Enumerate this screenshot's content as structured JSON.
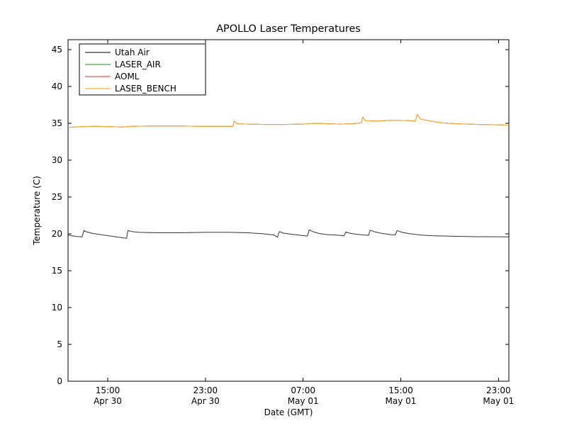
{
  "chart_data": {
    "type": "line",
    "title": "APOLLO Laser Temperatures",
    "xlabel": "Date (GMT)",
    "ylabel": "Temperature (C)",
    "ylim": [
      0,
      46.35
    ],
    "yticks": [
      0,
      5,
      10,
      15,
      20,
      25,
      30,
      35,
      40,
      45
    ],
    "xlim": [
      -0.25,
      35.85
    ],
    "xticks": [
      {
        "t": 3,
        "time": "15:00",
        "date": "Apr 30"
      },
      {
        "t": 11,
        "time": "23:00",
        "date": "Apr 30"
      },
      {
        "t": 19,
        "time": "07:00",
        "date": "May 01"
      },
      {
        "t": 27,
        "time": "15:00",
        "date": "May 01"
      },
      {
        "t": 35,
        "time": "23:00",
        "date": "May 01"
      }
    ],
    "legend_position": "upper left",
    "series": [
      {
        "name": "Utah Air",
        "color": "#333333",
        "points": [
          [
            -0.25,
            19.85
          ],
          [
            0.4,
            19.65
          ],
          [
            0.9,
            19.6
          ],
          [
            1.05,
            20.45
          ],
          [
            1.3,
            20.25
          ],
          [
            1.8,
            20.05
          ],
          [
            2.6,
            19.85
          ],
          [
            3.5,
            19.65
          ],
          [
            4.3,
            19.45
          ],
          [
            4.55,
            19.4
          ],
          [
            4.65,
            20.45
          ],
          [
            5.0,
            20.3
          ],
          [
            5.6,
            20.2
          ],
          [
            7.0,
            20.15
          ],
          [
            9.0,
            20.15
          ],
          [
            11.0,
            20.2
          ],
          [
            13.0,
            20.2
          ],
          [
            14.5,
            20.15
          ],
          [
            15.8,
            20.0
          ],
          [
            16.6,
            19.85
          ],
          [
            16.9,
            19.55
          ],
          [
            17.05,
            20.3
          ],
          [
            17.4,
            20.1
          ],
          [
            18.0,
            19.95
          ],
          [
            18.8,
            19.8
          ],
          [
            19.35,
            19.7
          ],
          [
            19.5,
            20.55
          ],
          [
            19.8,
            20.3
          ],
          [
            20.3,
            20.05
          ],
          [
            21.0,
            19.9
          ],
          [
            22.0,
            19.8
          ],
          [
            22.35,
            19.75
          ],
          [
            22.5,
            20.25
          ],
          [
            22.8,
            20.1
          ],
          [
            23.3,
            19.95
          ],
          [
            24.0,
            19.85
          ],
          [
            24.35,
            19.8
          ],
          [
            24.5,
            20.5
          ],
          [
            24.9,
            20.25
          ],
          [
            25.5,
            20.05
          ],
          [
            26.2,
            19.9
          ],
          [
            26.55,
            19.85
          ],
          [
            26.7,
            20.45
          ],
          [
            27.1,
            20.2
          ],
          [
            27.8,
            20.0
          ],
          [
            28.6,
            19.85
          ],
          [
            29.5,
            19.75
          ],
          [
            31.0,
            19.68
          ],
          [
            33.0,
            19.62
          ],
          [
            35.85,
            19.6
          ]
        ]
      },
      {
        "name": "LASER_AIR",
        "color": "#46a546",
        "points_same_as": "LASER_BENCH"
      },
      {
        "name": "AOML",
        "color": "#f4534f",
        "points_same_as": "LASER_BENCH"
      },
      {
        "name": "LASER_BENCH",
        "color": "#ffac33",
        "points": [
          [
            -0.25,
            34.45
          ],
          [
            0.8,
            34.55
          ],
          [
            2.0,
            34.6
          ],
          [
            3.2,
            34.55
          ],
          [
            4.2,
            34.5
          ],
          [
            5.0,
            34.6
          ],
          [
            6.5,
            34.65
          ],
          [
            8.5,
            34.65
          ],
          [
            10.5,
            34.6
          ],
          [
            12.5,
            34.6
          ],
          [
            13.25,
            34.6
          ],
          [
            13.35,
            35.3
          ],
          [
            13.6,
            34.95
          ],
          [
            14.5,
            34.9
          ],
          [
            16.0,
            34.85
          ],
          [
            17.5,
            34.85
          ],
          [
            19.0,
            34.9
          ],
          [
            20.0,
            35.0
          ],
          [
            21.0,
            34.95
          ],
          [
            22.0,
            34.9
          ],
          [
            23.0,
            34.95
          ],
          [
            23.75,
            35.05
          ],
          [
            23.9,
            35.85
          ],
          [
            24.1,
            35.35
          ],
          [
            25.0,
            35.3
          ],
          [
            26.0,
            35.4
          ],
          [
            27.0,
            35.4
          ],
          [
            27.8,
            35.35
          ],
          [
            28.2,
            35.3
          ],
          [
            28.35,
            36.2
          ],
          [
            28.6,
            35.6
          ],
          [
            29.0,
            35.45
          ],
          [
            29.8,
            35.2
          ],
          [
            30.5,
            35.05
          ],
          [
            31.5,
            34.95
          ],
          [
            32.5,
            34.9
          ],
          [
            33.5,
            34.85
          ],
          [
            35.0,
            34.8
          ],
          [
            35.85,
            34.75
          ]
        ]
      }
    ]
  },
  "style": {
    "axes_color": "#000000",
    "background": "#ffffff",
    "legend_border": "#000000",
    "legend_fill": "#ffffff"
  }
}
